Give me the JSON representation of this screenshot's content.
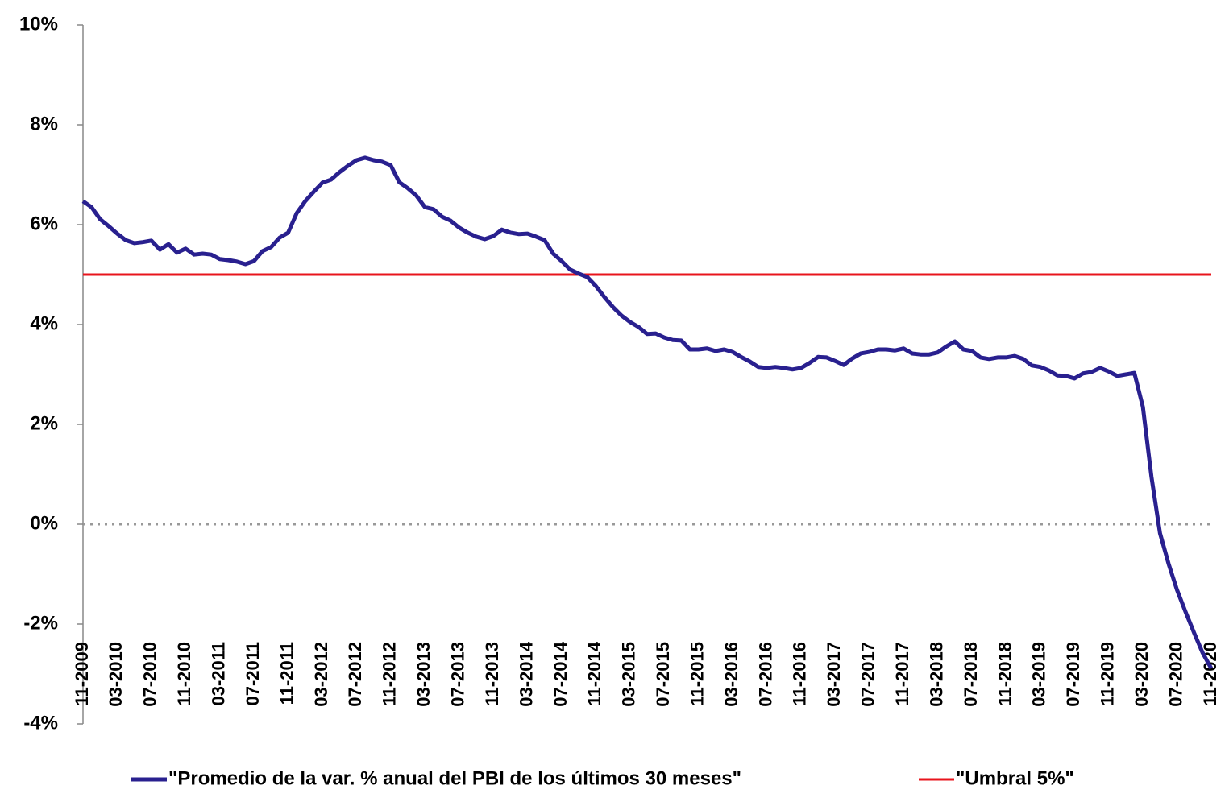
{
  "chart_data": {
    "type": "line",
    "categories": [
      "11-2009",
      null,
      null,
      null,
      "03-2010",
      null,
      null,
      null,
      "07-2010",
      null,
      null,
      null,
      "11-2010",
      null,
      null,
      null,
      "03-2011",
      null,
      null,
      null,
      "07-2011",
      null,
      null,
      null,
      "11-2011",
      null,
      null,
      null,
      "03-2012",
      null,
      null,
      null,
      "07-2012",
      null,
      null,
      null,
      "11-2012",
      null,
      null,
      null,
      "03-2013",
      null,
      null,
      null,
      "07-2013",
      null,
      null,
      null,
      "11-2013",
      null,
      null,
      null,
      "03-2014",
      null,
      null,
      null,
      "07-2014",
      null,
      null,
      null,
      "11-2014",
      null,
      null,
      null,
      "03-2015",
      null,
      null,
      null,
      "07-2015",
      null,
      null,
      null,
      "11-2015",
      null,
      null,
      null,
      "03-2016",
      null,
      null,
      null,
      "07-2016",
      null,
      null,
      null,
      "11-2016",
      null,
      null,
      null,
      "03-2017",
      null,
      null,
      null,
      "07-2017",
      null,
      null,
      null,
      "11-2017",
      null,
      null,
      null,
      "03-2018",
      null,
      null,
      null,
      "07-2018",
      null,
      null,
      null,
      "11-2018",
      null,
      null,
      null,
      "03-2019",
      null,
      null,
      null,
      "07-2019",
      null,
      null,
      null,
      "11-2019",
      null,
      null,
      null,
      "03-2020",
      null,
      null,
      null,
      "07-2020",
      null,
      null,
      null,
      "11-2020"
    ],
    "series": [
      {
        "name": "\"Promedio de la var. % anual del PBI de los últimos 30 meses\"",
        "color": "#29208f",
        "values": [
          6.47,
          6.35,
          6.11,
          5.97,
          5.82,
          5.69,
          5.63,
          5.65,
          5.68,
          5.5,
          5.61,
          5.44,
          5.52,
          5.4,
          5.42,
          5.4,
          5.31,
          5.29,
          5.26,
          5.21,
          5.27,
          5.47,
          5.55,
          5.74,
          5.84,
          6.23,
          6.47,
          6.66,
          6.84,
          6.9,
          7.05,
          7.18,
          7.29,
          7.34,
          7.29,
          7.26,
          7.19,
          6.85,
          6.73,
          6.58,
          6.35,
          6.31,
          6.16,
          6.08,
          5.94,
          5.84,
          5.76,
          5.71,
          5.77,
          5.9,
          5.84,
          5.81,
          5.82,
          5.76,
          5.69,
          5.42,
          5.27,
          5.1,
          5.02,
          4.95,
          4.77,
          4.55,
          4.35,
          4.18,
          4.05,
          3.95,
          3.81,
          3.82,
          3.74,
          3.69,
          3.68,
          3.5,
          3.5,
          3.52,
          3.47,
          3.5,
          3.45,
          3.35,
          3.26,
          3.15,
          3.13,
          3.15,
          3.13,
          3.1,
          3.13,
          3.23,
          3.35,
          3.34,
          3.27,
          3.19,
          3.32,
          3.42,
          3.45,
          3.5,
          3.5,
          3.48,
          3.52,
          3.42,
          3.4,
          3.4,
          3.44,
          3.56,
          3.66,
          3.5,
          3.47,
          3.34,
          3.31,
          3.34,
          3.34,
          3.37,
          3.31,
          3.18,
          3.15,
          3.08,
          2.98,
          2.97,
          2.92,
          3.02,
          3.05,
          3.13,
          3.06,
          2.97,
          3.0,
          3.03,
          2.35,
          0.95,
          -0.18,
          -0.79,
          -1.32,
          -1.76,
          -2.18,
          -2.58,
          -2.89
        ]
      },
      {
        "name": "\"Umbral 5%\"",
        "color": "#e8141c",
        "values": [
          5,
          5,
          5,
          5,
          5,
          5,
          5,
          5,
          5,
          5,
          5,
          5,
          5,
          5,
          5,
          5,
          5,
          5,
          5,
          5,
          5,
          5,
          5,
          5,
          5,
          5,
          5,
          5,
          5,
          5,
          5,
          5,
          5,
          5,
          5,
          5,
          5,
          5,
          5,
          5,
          5,
          5,
          5,
          5,
          5,
          5,
          5,
          5,
          5,
          5,
          5,
          5,
          5,
          5,
          5,
          5,
          5,
          5,
          5,
          5,
          5,
          5,
          5,
          5,
          5,
          5,
          5,
          5,
          5,
          5,
          5,
          5,
          5,
          5,
          5,
          5,
          5,
          5,
          5,
          5,
          5,
          5,
          5,
          5,
          5,
          5,
          5,
          5,
          5,
          5,
          5,
          5,
          5,
          5,
          5,
          5,
          5,
          5,
          5,
          5,
          5,
          5,
          5,
          5,
          5,
          5,
          5,
          5,
          5,
          5,
          5,
          5,
          5,
          5,
          5,
          5,
          5,
          5,
          5,
          5,
          5,
          5,
          5,
          5,
          5,
          5,
          5,
          5,
          5,
          5,
          5,
          5,
          5
        ]
      }
    ],
    "ylim": [
      -4,
      10
    ],
    "yticks": [
      {
        "value": -4,
        "label": "-4%"
      },
      {
        "value": -2,
        "label": "-2%"
      },
      {
        "value": 0,
        "label": "0%"
      },
      {
        "value": 2,
        "label": "2%"
      },
      {
        "value": 4,
        "label": "4%"
      },
      {
        "value": 6,
        "label": "6%"
      },
      {
        "value": 8,
        "label": "8%"
      },
      {
        "value": 10,
        "label": "10%"
      }
    ],
    "legend": "bottom"
  }
}
